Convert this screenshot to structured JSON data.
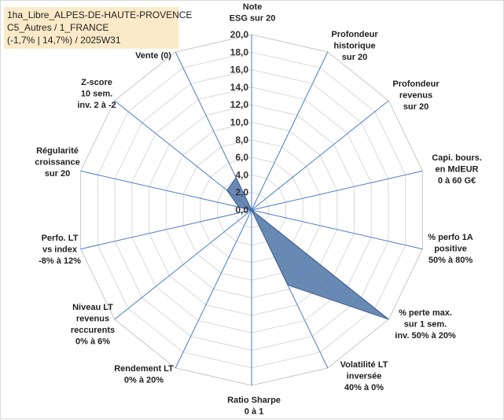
{
  "info": {
    "line1": "1ha_Libre_ALPES-DE-HAUTE-PROVENCE",
    "line2": "C5_Autres / 1_FRANCE",
    "line3": "(-1,7% | 14,7%) / 2025W31"
  },
  "chart_data": {
    "type": "radar",
    "title": "",
    "rmin": 0,
    "rmax": 20,
    "tick_step": 2,
    "grid": true,
    "tick_labels": [
      "0,0",
      "2,0",
      "4,0",
      "6,0",
      "8,0",
      "10,0",
      "12,0",
      "14,0",
      "16,0",
      "18,0",
      "20,0"
    ],
    "axes": [
      "Note\nESG sur 20",
      "Profondeur\nhistorique\nsur 20",
      "Profondeur\nrevenus\nsur 20",
      "Capi. bours.\nen MdEUR\n0 à 60 G€",
      "% perfo 1A\npositive\n50% à 80%",
      "% perte max.\nsur 1 sem.\ninv. 50% à 20%",
      "Volatilité LT\ninversée\n40% à 0%",
      "Ratio Sharpe\n0 à 1",
      "Rendement LT\n0% à 20%",
      "Niveau LT\nrevenus\nreccurents\n0% à 6%",
      "Perfo. LT\nvs index\n-8% à 12%",
      "Régularité\ncroissance\nsur 20",
      "Z-score\n10 sem.\ninv. 2 à -2",
      "Momentum\nAchat (20) /\nVente (0)"
    ],
    "series": [
      {
        "name": "",
        "color": "#4f74a8",
        "values": [
          0,
          0,
          0,
          0,
          0,
          20,
          9.5,
          0,
          0,
          0,
          0,
          1.5,
          3.6,
          4.1
        ]
      }
    ]
  }
}
